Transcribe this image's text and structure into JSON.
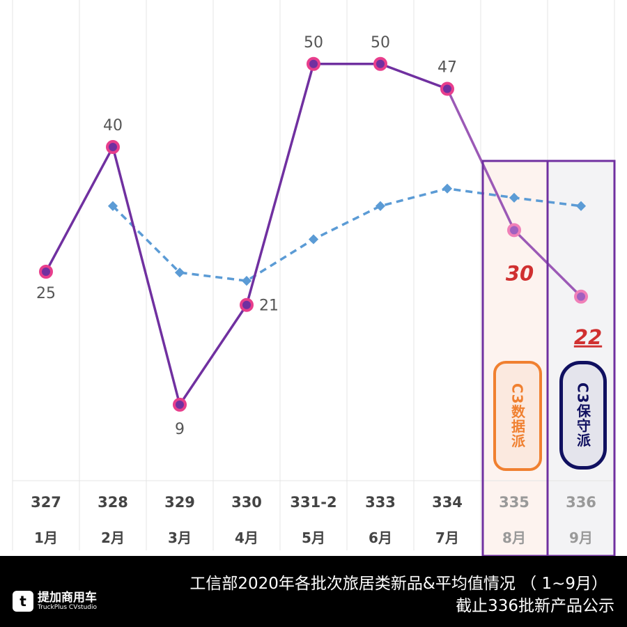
{
  "chart_data": {
    "type": "line",
    "categories": [
      "327",
      "328",
      "329",
      "330",
      "331-2",
      "333",
      "334",
      "335",
      "336"
    ],
    "months": [
      "1月",
      "2月",
      "3月",
      "4月",
      "5月",
      "6月",
      "7月",
      "8月",
      "9月"
    ],
    "series": [
      {
        "values": [
          25,
          40,
          9,
          21,
          50,
          50,
          47,
          30,
          22
        ],
        "color": "#7030a0",
        "marker": "#e83e8c"
      },
      {
        "values": [
          null,
          32.9,
          24.9,
          23.9,
          28.9,
          32.9,
          35.0,
          33.9,
          32.9
        ],
        "color": "#5b9bd5",
        "style": "dashed"
      }
    ],
    "data_labels": [
      "25",
      "40",
      "9",
      "21",
      "50",
      "50",
      "47",
      "30",
      "22"
    ],
    "highlight_color": "#7030a0",
    "grid": "vertical",
    "ylim": [
      0,
      55
    ]
  },
  "stamps": {
    "left": "C3数据派",
    "right": "C3保守派"
  },
  "footer": {
    "title": "工信部2020年各批次旅居类新品&平均值情况 （ 1~9月）",
    "subtitle": "截止336批新产品公示",
    "logo_cn": "提加商用车",
    "logo_en": "TruckPlus CVstudio",
    "logo_mark": "t"
  }
}
